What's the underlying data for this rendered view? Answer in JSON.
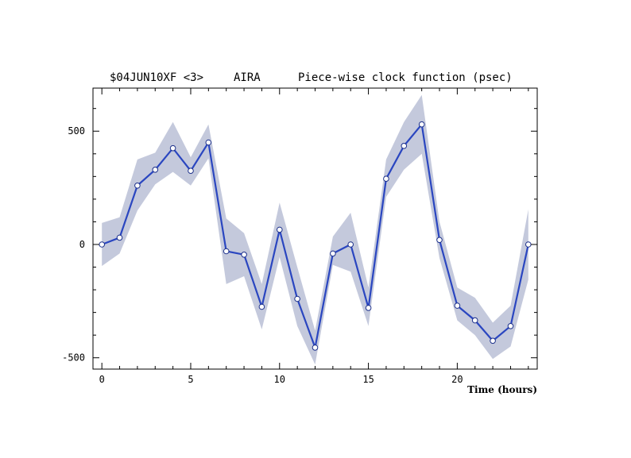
{
  "header": {
    "experiment": "$04JUN10XF <3>",
    "station": "AIRA",
    "title": "Piece-wise clock function (psec)"
  },
  "chart_data": {
    "type": "line",
    "title": "Piece-wise clock function (psec)",
    "xlabel": "Time (hours)",
    "ylabel": "",
    "xlim": [
      -0.5,
      24.5
    ],
    "ylim": [
      -550,
      690
    ],
    "xticks": [
      0,
      5,
      10,
      15,
      20
    ],
    "yticks": [
      -500,
      0,
      500
    ],
    "grid": false,
    "legend": "none",
    "colors": {
      "line": "#2a46c0",
      "band": "#c4c9dc",
      "marker_fill": "#ffffff",
      "frame": "#000000"
    },
    "series": [
      {
        "x": [
          0,
          1,
          2,
          3,
          4,
          5,
          6,
          7,
          8,
          9,
          10,
          11,
          12,
          13,
          14,
          15,
          16,
          17,
          18,
          19,
          20,
          21,
          22,
          23,
          24
        ],
        "values": [
          0,
          30,
          260,
          330,
          425,
          325,
          450,
          -30,
          -45,
          -275,
          65,
          -240,
          -455,
          -40,
          0,
          -280,
          290,
          435,
          530,
          20,
          -270,
          -335,
          -425,
          -360,
          0
        ],
        "band_upper": [
          95,
          120,
          375,
          405,
          540,
          385,
          530,
          115,
          50,
          -175,
          185,
          -100,
          -380,
          35,
          140,
          -190,
          375,
          540,
          660,
          100,
          -190,
          -235,
          -345,
          -270,
          155
        ],
        "band_lower": [
          -95,
          -40,
          150,
          265,
          320,
          260,
          380,
          -175,
          -140,
          -375,
          -55,
          -360,
          -530,
          -90,
          -120,
          -360,
          210,
          330,
          400,
          -60,
          -335,
          -400,
          -505,
          -450,
          -155
        ]
      }
    ]
  }
}
